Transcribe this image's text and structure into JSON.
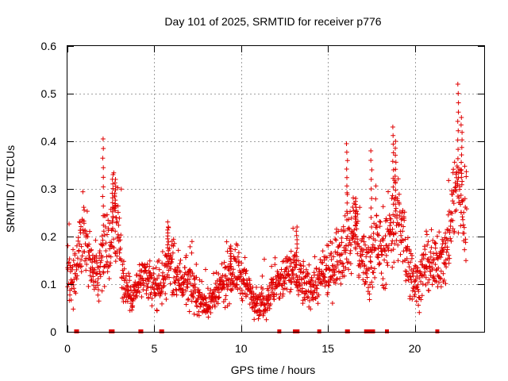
{
  "chart_data": {
    "type": "scatter",
    "title": "Day 101 of 2025, SRMTID for receiver p776",
    "xlabel": "GPS time / hours",
    "ylabel": "SRMTID / TECUs",
    "xlim": [
      0,
      24
    ],
    "ylim": [
      0,
      0.6
    ],
    "x_ticks": [
      0,
      5,
      10,
      15,
      20
    ],
    "x_tick_labels": [
      "0",
      "5",
      "10",
      "15",
      "20"
    ],
    "y_ticks": [
      0,
      0.1,
      0.2,
      0.3,
      0.4,
      0.5,
      0.6
    ],
    "y_tick_labels": [
      "0",
      "0.1",
      "0.2",
      "0.3",
      "0.4",
      "0.5",
      "0.6"
    ],
    "grid": true,
    "marker": "plus",
    "series_color": "#e00000",
    "trend": [
      [
        0.0,
        0.14
      ],
      [
        0.3,
        0.12
      ],
      [
        0.6,
        0.15
      ],
      [
        0.9,
        0.2
      ],
      [
        1.2,
        0.16
      ],
      [
        1.5,
        0.13
      ],
      [
        1.8,
        0.12
      ],
      [
        2.1,
        0.19
      ],
      [
        2.4,
        0.16
      ],
      [
        2.7,
        0.25
      ],
      [
        3.0,
        0.18
      ],
      [
        3.3,
        0.09
      ],
      [
        3.6,
        0.08
      ],
      [
        4.0,
        0.09
      ],
      [
        4.3,
        0.12
      ],
      [
        4.6,
        0.1
      ],
      [
        5.0,
        0.09
      ],
      [
        5.4,
        0.1
      ],
      [
        5.8,
        0.15
      ],
      [
        6.2,
        0.12
      ],
      [
        6.6,
        0.11
      ],
      [
        7.0,
        0.1
      ],
      [
        7.4,
        0.08
      ],
      [
        7.8,
        0.06
      ],
      [
        8.2,
        0.06
      ],
      [
        8.6,
        0.08
      ],
      [
        9.0,
        0.1
      ],
      [
        9.4,
        0.12
      ],
      [
        9.8,
        0.13
      ],
      [
        10.2,
        0.1
      ],
      [
        10.6,
        0.08
      ],
      [
        11.0,
        0.06
      ],
      [
        11.4,
        0.06
      ],
      [
        11.8,
        0.09
      ],
      [
        12.2,
        0.1
      ],
      [
        12.6,
        0.12
      ],
      [
        13.0,
        0.13
      ],
      [
        13.4,
        0.11
      ],
      [
        13.8,
        0.09
      ],
      [
        14.2,
        0.1
      ],
      [
        14.6,
        0.11
      ],
      [
        15.0,
        0.12
      ],
      [
        15.4,
        0.15
      ],
      [
        15.8,
        0.18
      ],
      [
        16.2,
        0.2
      ],
      [
        16.6,
        0.21
      ],
      [
        17.0,
        0.15
      ],
      [
        17.4,
        0.14
      ],
      [
        17.8,
        0.2
      ],
      [
        18.2,
        0.15
      ],
      [
        18.6,
        0.22
      ],
      [
        19.0,
        0.24
      ],
      [
        19.4,
        0.18
      ],
      [
        19.8,
        0.12
      ],
      [
        20.2,
        0.1
      ],
      [
        20.6,
        0.14
      ],
      [
        21.0,
        0.13
      ],
      [
        21.4,
        0.15
      ],
      [
        21.8,
        0.16
      ],
      [
        22.2,
        0.28
      ],
      [
        22.5,
        0.3
      ],
      [
        22.8,
        0.26
      ],
      [
        23.0,
        0.25
      ]
    ],
    "spikes": [
      [
        2.05,
        0.405
      ],
      [
        2.6,
        0.33
      ],
      [
        2.75,
        0.32
      ],
      [
        5.8,
        0.22
      ],
      [
        9.4,
        0.18
      ],
      [
        13.2,
        0.22
      ],
      [
        16.1,
        0.395
      ],
      [
        16.6,
        0.28
      ],
      [
        17.5,
        0.38
      ],
      [
        18.75,
        0.43
      ],
      [
        18.9,
        0.4
      ],
      [
        22.5,
        0.52
      ],
      [
        22.7,
        0.45
      ]
    ],
    "zero_markers_x": [
      0.5,
      0.55,
      2.5,
      2.6,
      4.2,
      4.25,
      5.4,
      5.45,
      12.2,
      13.1,
      13.2,
      13.25,
      14.5,
      16.1,
      16.15,
      17.2,
      17.3,
      17.4,
      17.5,
      17.6,
      18.4,
      21.3
    ],
    "n_points": 1750,
    "x_range": [
      0.0,
      23.0
    ]
  }
}
